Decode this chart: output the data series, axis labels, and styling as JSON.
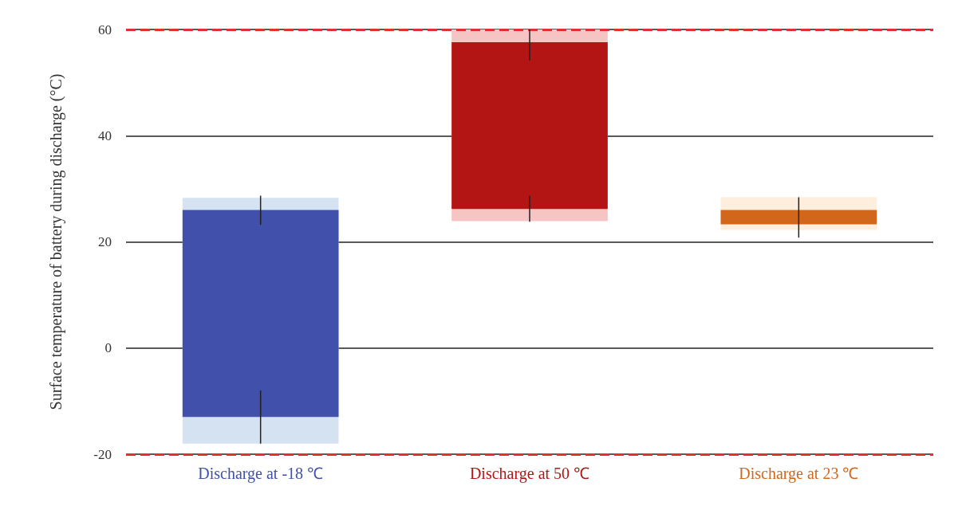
{
  "chart_data": {
    "type": "bar",
    "ylabel": "Surface temperature of battery during discharge (°C)",
    "categories": [
      "Discharge at -18 ℃",
      "Discharge at 50 ℃",
      "Discharge at 23 ℃"
    ],
    "series": [
      {
        "colors": [
          "#d4e2f2",
          "#f7c4c4",
          "#fdeedd"
        ],
        "base": [
          -18,
          23.9,
          22.2
        ],
        "values": [
          46.3,
          36.1,
          6.2
        ],
        "errors": [
          [
            23.2,
            28.7
          ],
          [
            54.2,
            60
          ],
          [
            24.6,
            28.4
          ]
        ]
      },
      {
        "colors": [
          "#4050ab",
          "#b31515",
          "#d2661a"
        ],
        "base": [
          26,
          57.6,
          26
        ],
        "values": [
          -39,
          -31.4,
          -2.7
        ],
        "errors": [
          [
            -18,
            -8
          ],
          [
            23.8,
            28.7
          ],
          [
            20.8,
            24.6
          ]
        ]
      }
    ],
    "ylim": [
      -20,
      60
    ],
    "yticks": [
      -20,
      0,
      20,
      40,
      60
    ],
    "grid": "y",
    "ref_lines": [
      {
        "axis": "y",
        "value": 60,
        "color": "#e03030",
        "line_style": "dashed"
      },
      {
        "axis": "y",
        "value": -20,
        "color": "#e03030",
        "line_style": "dashed"
      }
    ]
  }
}
